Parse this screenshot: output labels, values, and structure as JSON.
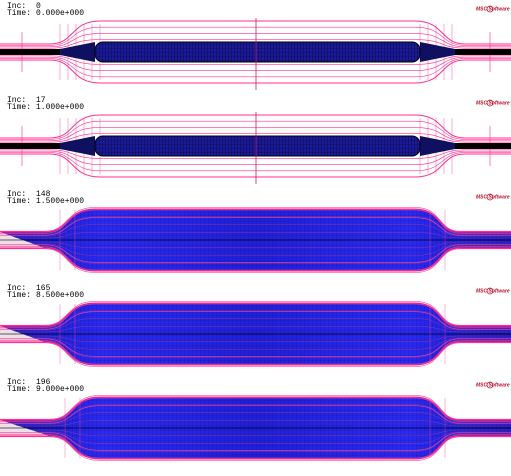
{
  "panels": [
    {
      "inc_label": "Inc:",
      "inc": "0",
      "time_label": "Time:",
      "time": "0.000e+000",
      "logo": "MSC Software"
    },
    {
      "inc_label": "Inc:",
      "inc": "17",
      "time_label": "Time:",
      "time": "1.000e+000",
      "logo": "MSC Software"
    },
    {
      "inc_label": "Inc:",
      "inc": "148",
      "time_label": "Time:",
      "time": "1.500e+000",
      "logo": "MSC Software"
    },
    {
      "inc_label": "Inc:",
      "inc": "165",
      "time_label": "Time:",
      "time": "8.500e+000",
      "logo": "MSC Software"
    },
    {
      "inc_label": "Inc:",
      "inc": "196",
      "time_label": "Time:",
      "time": "9.000e+000",
      "logo": "MSC Software"
    }
  ]
}
